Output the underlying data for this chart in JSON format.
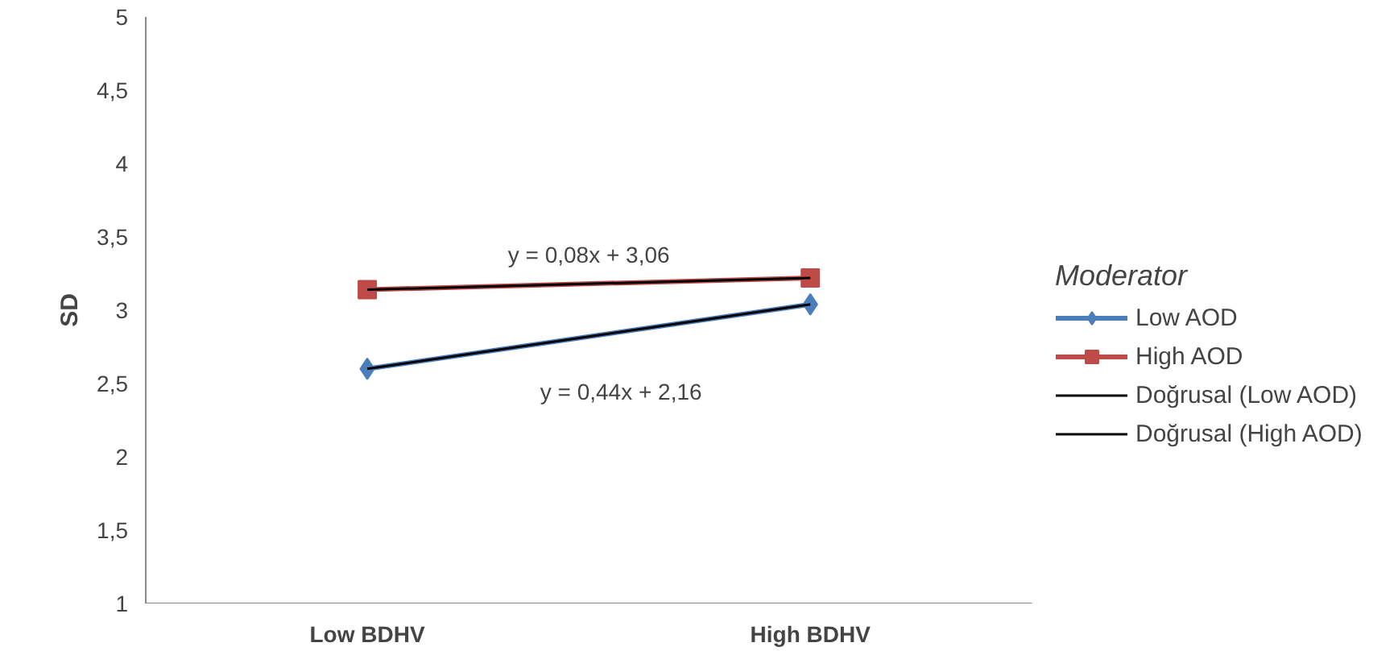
{
  "chart_data": {
    "type": "line",
    "ylabel": "SD",
    "legend_title": "Moderator",
    "categories": [
      "Low BDHV",
      "High BDHV"
    ],
    "series": [
      {
        "name": "Low AOD",
        "color": "#4a7ebb",
        "values": [
          2.6,
          3.04
        ],
        "marker": "diamond"
      },
      {
        "name": "High AOD",
        "color": "#be4b48",
        "values": [
          3.14,
          3.22
        ],
        "marker": "square"
      },
      {
        "name": "Doğrusal (Low AOD)",
        "color": "#000000",
        "values": [
          2.6,
          3.04
        ],
        "marker": "none"
      },
      {
        "name": "Doğrusal (High AOD)",
        "color": "#000000",
        "values": [
          3.14,
          3.22
        ],
        "marker": "none"
      }
    ],
    "annotations": [
      "y = 0,08x + 3,06",
      "y = 0,44x + 2,16"
    ],
    "ylim": [
      1,
      5
    ],
    "yticks": [
      1,
      {
        "value": 1.5,
        "label": "1,5"
      },
      2,
      {
        "value": 2.5,
        "label": "2,5"
      },
      3,
      {
        "value": 3.5,
        "label": "3,5"
      },
      4,
      {
        "value": 4.5,
        "label": "4,5"
      },
      5
    ],
    "grid": false,
    "legend": "right"
  }
}
